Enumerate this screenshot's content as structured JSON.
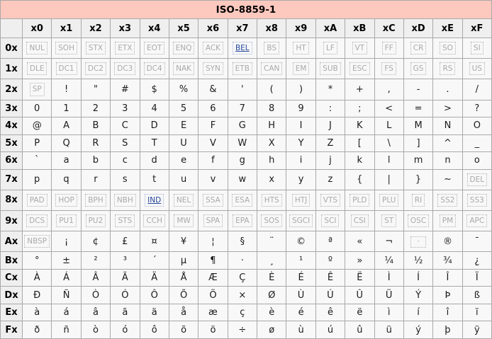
{
  "table": {
    "title": "ISO-8859-1",
    "col_headers": [
      "x0",
      "x1",
      "x2",
      "x3",
      "x4",
      "x5",
      "x6",
      "x7",
      "x8",
      "x9",
      "xA",
      "xB",
      "xC",
      "xD",
      "xE",
      "xF"
    ],
    "rows": [
      {
        "header": "0x",
        "kind": "ctrl",
        "cells": [
          "NUL",
          "SOH",
          "STX",
          "ETX",
          "EOT",
          "ENQ",
          "ACK",
          "BEL",
          "BS",
          "HT",
          "LF",
          "VT",
          "FF",
          "CR",
          "SO",
          "SI"
        ],
        "overrides": {
          "7": "link"
        }
      },
      {
        "header": "1x",
        "kind": "ctrl",
        "cells": [
          "DLE",
          "DC1",
          "DC2",
          "DC3",
          "DC4",
          "NAK",
          "SYN",
          "ETB",
          "CAN",
          "EM",
          "SUB",
          "ESC",
          "FS",
          "GS",
          "RS",
          "US"
        ]
      },
      {
        "header": "2x",
        "kind": "ch",
        "cells": [
          "SP",
          "!",
          "\"",
          "#",
          "$",
          "%",
          "&",
          "'",
          "(",
          ")",
          "*",
          "+",
          ",",
          "-",
          ".",
          "/"
        ],
        "overrides": {
          "0": "ctrl"
        }
      },
      {
        "header": "3x",
        "kind": "ch",
        "cells": [
          "0",
          "1",
          "2",
          "3",
          "4",
          "5",
          "6",
          "7",
          "8",
          "9",
          ":",
          ";",
          "<",
          "=",
          ">",
          "?"
        ]
      },
      {
        "header": "4x",
        "kind": "ch",
        "cells": [
          "@",
          "A",
          "B",
          "C",
          "D",
          "E",
          "F",
          "G",
          "H",
          "I",
          "J",
          "K",
          "L",
          "M",
          "N",
          "O"
        ]
      },
      {
        "header": "5x",
        "kind": "ch",
        "cells": [
          "P",
          "Q",
          "R",
          "S",
          "T",
          "U",
          "V",
          "W",
          "X",
          "Y",
          "Z",
          "[",
          "\\",
          "]",
          "^",
          "_"
        ]
      },
      {
        "header": "6x",
        "kind": "ch",
        "cells": [
          "`",
          "a",
          "b",
          "c",
          "d",
          "e",
          "f",
          "g",
          "h",
          "i",
          "j",
          "k",
          "l",
          "m",
          "n",
          "o"
        ]
      },
      {
        "header": "7x",
        "kind": "ch",
        "cells": [
          "p",
          "q",
          "r",
          "s",
          "t",
          "u",
          "v",
          "w",
          "x",
          "y",
          "z",
          "{",
          "|",
          "}",
          "~",
          "DEL"
        ],
        "overrides": {
          "15": "ctrl"
        }
      },
      {
        "header": "8x",
        "kind": "ctrl",
        "cells": [
          "PAD",
          "HOP",
          "BPH",
          "NBH",
          "IND",
          "NEL",
          "SSA",
          "ESA",
          "HTS",
          "HTJ",
          "VTS",
          "PLD",
          "PLU",
          "RI",
          "SS2",
          "SS3"
        ],
        "overrides": {
          "4": "link"
        }
      },
      {
        "header": "9x",
        "kind": "ctrl",
        "cells": [
          "DCS",
          "PU1",
          "PU2",
          "STS",
          "CCH",
          "MW",
          "SPA",
          "EPA",
          "SOS",
          "SGCI",
          "SCI",
          "CSI",
          "ST",
          "OSC",
          "PM",
          "APC"
        ]
      },
      {
        "header": "Ax",
        "kind": "ch",
        "cells": [
          "NBSP",
          "¡",
          "¢",
          "£",
          "¤",
          "¥",
          "¦",
          "§",
          "¨",
          "©",
          "ª",
          "«",
          "¬",
          "-",
          "®",
          "¯"
        ],
        "overrides": {
          "0": "ctrl",
          "13": "shy"
        }
      },
      {
        "header": "Bx",
        "kind": "ch",
        "cells": [
          "°",
          "±",
          "²",
          "³",
          "´",
          "µ",
          "¶",
          "·",
          "¸",
          "¹",
          "º",
          "»",
          "¼",
          "½",
          "¾",
          "¿"
        ]
      },
      {
        "header": "Cx",
        "kind": "ch",
        "cells": [
          "À",
          "Á",
          "Â",
          "Ã",
          "Ä",
          "Å",
          "Æ",
          "Ç",
          "È",
          "É",
          "Ê",
          "Ë",
          "Ì",
          "Í",
          "Î",
          "Ï"
        ]
      },
      {
        "header": "Dx",
        "kind": "ch",
        "cells": [
          "Ð",
          "Ñ",
          "Ò",
          "Ó",
          "Ô",
          "Õ",
          "Ö",
          "×",
          "Ø",
          "Ù",
          "Ú",
          "Û",
          "Ü",
          "Ý",
          "Þ",
          "ß"
        ]
      },
      {
        "header": "Ex",
        "kind": "ch",
        "cells": [
          "à",
          "á",
          "â",
          "ã",
          "ä",
          "å",
          "æ",
          "ç",
          "è",
          "é",
          "ê",
          "ë",
          "ì",
          "í",
          "î",
          "ï"
        ]
      },
      {
        "header": "Fx",
        "kind": "ch",
        "cells": [
          "ð",
          "ñ",
          "ò",
          "ó",
          "ô",
          "õ",
          "ö",
          "÷",
          "ø",
          "ù",
          "ú",
          "û",
          "ü",
          "ý",
          "þ",
          "ÿ"
        ]
      }
    ]
  },
  "colors": {
    "title_bg": "#fdc9be",
    "header_bg": "#efefef",
    "cell_bg": "#f8f8f8",
    "border": "#a9a9a9",
    "control_text": "#a9a9a9",
    "control_border": "#b3b3b3",
    "link_blue": "#23479c"
  }
}
